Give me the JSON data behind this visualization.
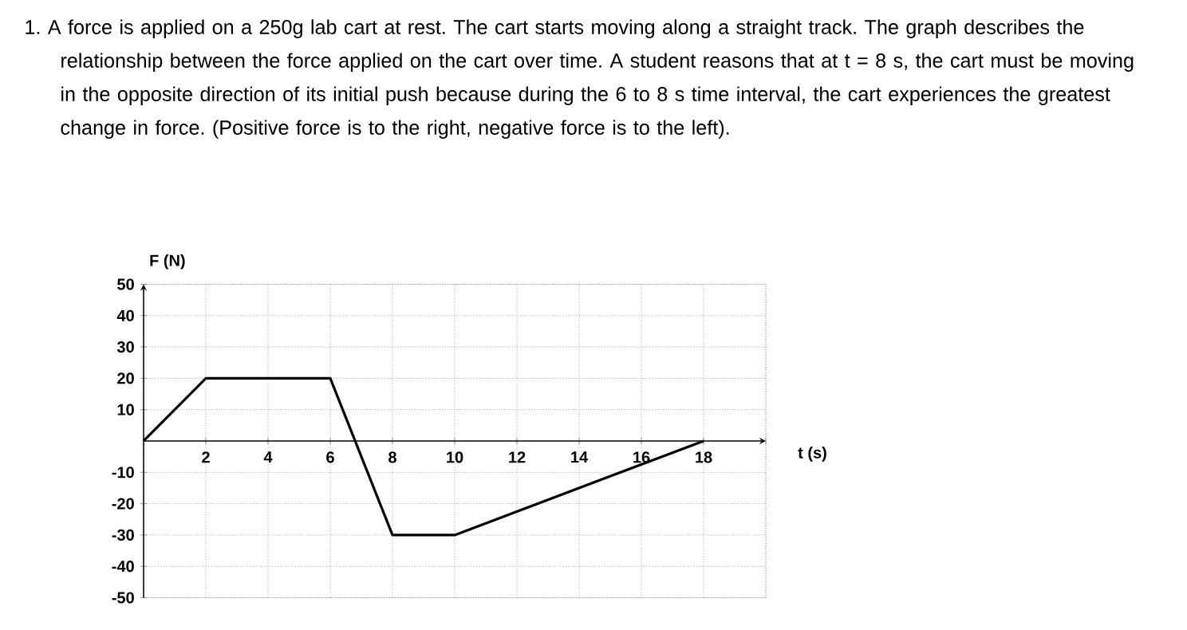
{
  "chart_data": {
    "type": "line",
    "title": "1. A force is applied on a 250g lab cart at rest. The cart starts moving along a straight track. The graph describes the relationship between the force applied on the cart over time. A student reasons that at t = 8 s, the cart must be moving in the opposite direction of its initial push because during the 6 to 8 s time interval, the cart experiences the greatest change in force. (Positive force is to the right, negative force is to the left).",
    "xlabel": "t (s)",
    "ylabel": "F (N)",
    "x": [
      0,
      2,
      6,
      8,
      10,
      18
    ],
    "values": [
      0,
      20,
      20,
      -30,
      -30,
      0
    ],
    "color": "#000000",
    "xlim": [
      0,
      20
    ],
    "ylim": [
      -50,
      50
    ],
    "xticks": [
      2,
      4,
      6,
      8,
      10,
      12,
      14,
      16,
      18,
      {
        "value": 20,
        "label": null
      }
    ],
    "yticks": [
      -50,
      -40,
      -30,
      -20,
      -10,
      10,
      20,
      30,
      40,
      50
    ],
    "grid": true,
    "marker": "none"
  }
}
